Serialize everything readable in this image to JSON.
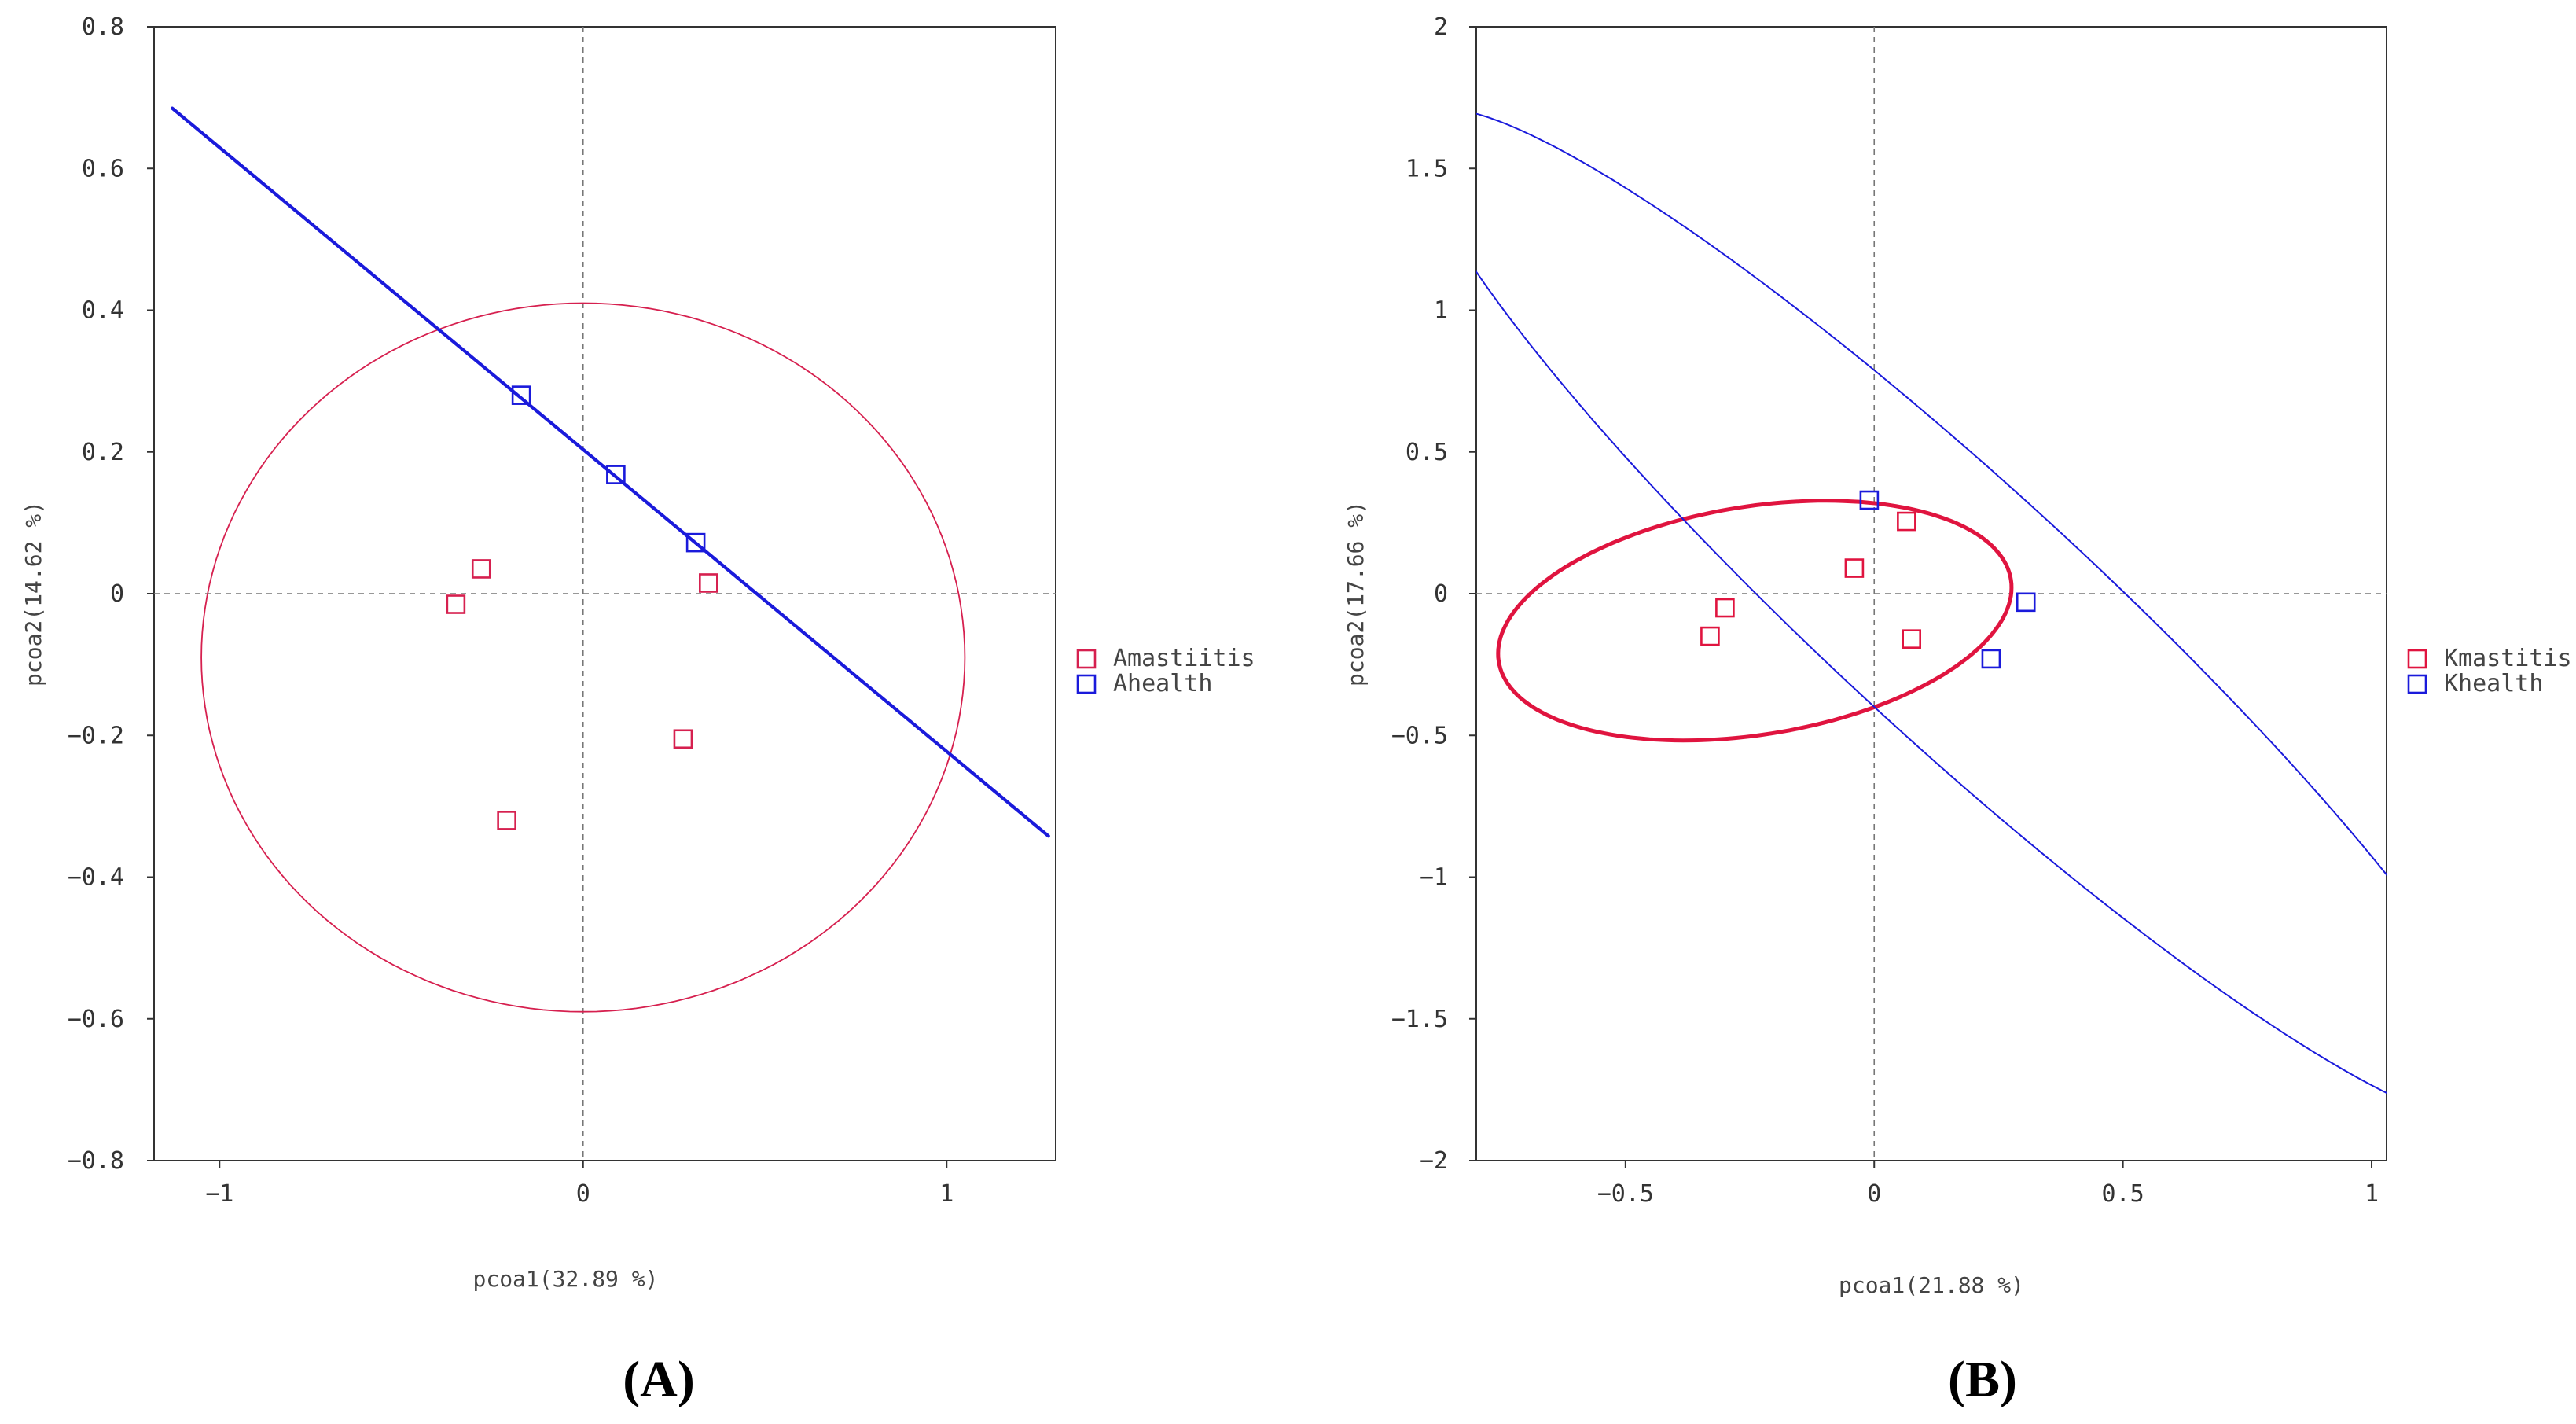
{
  "chart_data": [
    {
      "type": "scatter",
      "panel_label": "(A)",
      "xlabel": "pcoa1(32.89 %)",
      "ylabel": "pcoa2(14.62 %)",
      "xlim": [
        -1.18,
        1.3
      ],
      "ylim": [
        -0.8,
        0.8
      ],
      "xticks": [
        -1,
        0,
        1
      ],
      "xtick_labels": [
        "−1",
        "0",
        "1"
      ],
      "yticks": [
        0.8,
        0.6,
        0.4,
        0.2,
        0,
        -0.2,
        -0.4,
        -0.6,
        -0.8
      ],
      "ytick_labels": [
        "0.8",
        "0.6",
        "0.4",
        "0.2",
        "0",
        "−0.2",
        "−0.4",
        "−0.6",
        "−0.8"
      ],
      "reference_lines": {
        "x": 0,
        "y": 0,
        "style": "dashed"
      },
      "series": [
        {
          "name": "Amastiitis",
          "color": "#d6204f",
          "marker": "open-square",
          "points": [
            [
              -0.28,
              0.035
            ],
            [
              -0.35,
              -0.015
            ],
            [
              0.345,
              0.015
            ],
            [
              0.275,
              -0.205
            ],
            [
              -0.21,
              -0.32
            ]
          ],
          "ellipse": {
            "kind": "ellipse",
            "center": [
              0.0,
              -0.09
            ],
            "semi_axes": [
              1.05,
              0.5
            ],
            "angle_deg": 0,
            "stroke_width": "thin"
          }
        },
        {
          "name": "Ahealth",
          "color": "#1a1adb",
          "marker": "open-square",
          "points": [
            [
              -0.17,
              0.28
            ],
            [
              0.09,
              0.168
            ],
            [
              0.31,
              0.072
            ]
          ],
          "ellipse": {
            "kind": "degenerate-line",
            "from": [
              -1.13,
              0.685
            ],
            "to": [
              1.28,
              -0.342
            ],
            "stroke_width": "thick"
          }
        }
      ]
    },
    {
      "type": "scatter",
      "panel_label": "(B)",
      "xlabel": "pcoa1(21.88 %)",
      "ylabel": "pcoa2(17.66 %)",
      "xlim": [
        -0.8,
        1.03
      ],
      "ylim": [
        -2,
        2
      ],
      "xticks": [
        -0.5,
        0,
        0.5,
        1
      ],
      "xtick_labels": [
        "−0.5",
        "0",
        "0.5",
        "1"
      ],
      "yticks": [
        2,
        1.5,
        1,
        0.5,
        0,
        -0.5,
        -1,
        -1.5,
        -2
      ],
      "ytick_labels": [
        "2",
        "1.5",
        "1",
        "0.5",
        "0",
        "−0.5",
        "−1",
        "−1.5",
        "−2"
      ],
      "reference_lines": {
        "x": 0,
        "y": 0,
        "style": "dashed"
      },
      "series": [
        {
          "name": "Kmastitis",
          "color": "#e0143f",
          "marker": "open-square",
          "points": [
            [
              -0.3,
              -0.05
            ],
            [
              -0.33,
              -0.15
            ],
            [
              -0.04,
              0.09
            ],
            [
              0.065,
              0.255
            ],
            [
              0.075,
              -0.16
            ]
          ],
          "ellipse": {
            "kind": "ellipse",
            "center": [
              -0.24,
              -0.095
            ],
            "semi_axes": [
              0.545,
              0.385
            ],
            "angle_deg": 27,
            "stroke_width": "thick"
          }
        },
        {
          "name": "Khealth",
          "color": "#1a1adb",
          "marker": "open-square",
          "points": [
            [
              -0.01,
              0.33
            ],
            [
              0.305,
              -0.03
            ],
            [
              0.235,
              -0.23
            ]
          ],
          "ellipse": {
            "kind": "ellipse",
            "center": [
              0.18,
              -0.08
            ],
            "semi_axes": [
              2.08,
              0.32
            ],
            "angle_deg": -59,
            "stroke_width": "thin"
          }
        }
      ]
    }
  ]
}
